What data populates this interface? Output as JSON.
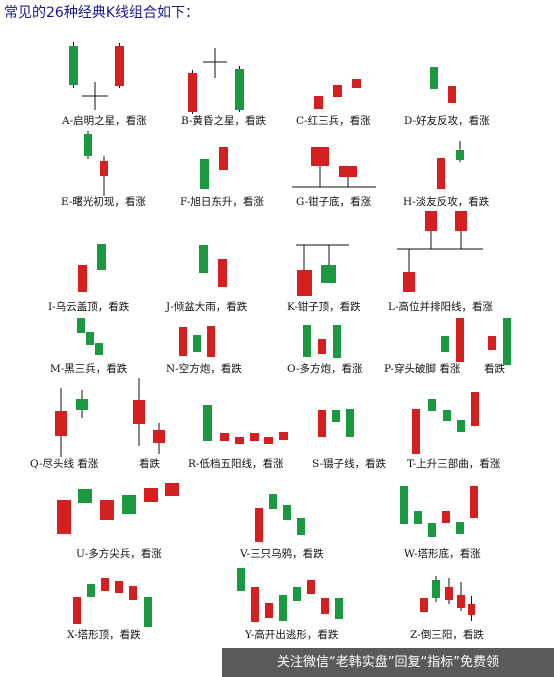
{
  "header": {
    "title": "常见的26种经典K线组合如下："
  },
  "colors": {
    "up": "#d42020",
    "down": "#1a9940",
    "ink": "#111111"
  },
  "patterns": [
    {
      "id": "A",
      "caption": "A-启明之星，看涨"
    },
    {
      "id": "B",
      "caption": "B-黄昏之星，看跌"
    },
    {
      "id": "C",
      "caption": "C-红三兵，看涨"
    },
    {
      "id": "D",
      "caption": "D-好友反攻，看涨"
    },
    {
      "id": "E",
      "caption": "E-曙光初现，看涨"
    },
    {
      "id": "F",
      "caption": "F-旭日东升，看涨"
    },
    {
      "id": "G",
      "caption": "G-钳子底，看涨"
    },
    {
      "id": "H",
      "caption": "H-淡友反攻，看跌"
    },
    {
      "id": "I",
      "caption": "I-乌云盖顶，看跌"
    },
    {
      "id": "J",
      "caption": "J-倾盆大雨，看跌"
    },
    {
      "id": "K",
      "caption": "K-钳子顶，看跌"
    },
    {
      "id": "L",
      "caption": "L-高位并排阳线，看涨"
    },
    {
      "id": "M",
      "caption": "M-黑三兵，看跌"
    },
    {
      "id": "N",
      "caption": "N-空方炮，看跌"
    },
    {
      "id": "O",
      "caption": "O-多方炮，看涨"
    },
    {
      "id": "P",
      "caption": "P-穿头破脚  看涨"
    },
    {
      "id": "P2",
      "caption": "看跌"
    },
    {
      "id": "Q",
      "caption": "Q-尽头线  看涨"
    },
    {
      "id": "Q2",
      "caption": "看跌"
    },
    {
      "id": "R",
      "caption": "R-低档五阳线，看涨"
    },
    {
      "id": "S",
      "caption": "S-镊子线，看跌"
    },
    {
      "id": "T",
      "caption": "T-上升三部曲，看涨"
    },
    {
      "id": "U",
      "caption": "U-多方尖兵，看涨"
    },
    {
      "id": "V",
      "caption": "V-三只乌鸦，看跌"
    },
    {
      "id": "W",
      "caption": "W-塔形底，看涨"
    },
    {
      "id": "X",
      "caption": "X-塔形顶，看跌"
    },
    {
      "id": "Y",
      "caption": "Y-高开出逃形，看跌"
    },
    {
      "id": "Z",
      "caption": "Z-倒三阳，看跌"
    }
  ],
  "footer": {
    "text": "关注微信“老韩实盘”回复“指标”免费领"
  }
}
